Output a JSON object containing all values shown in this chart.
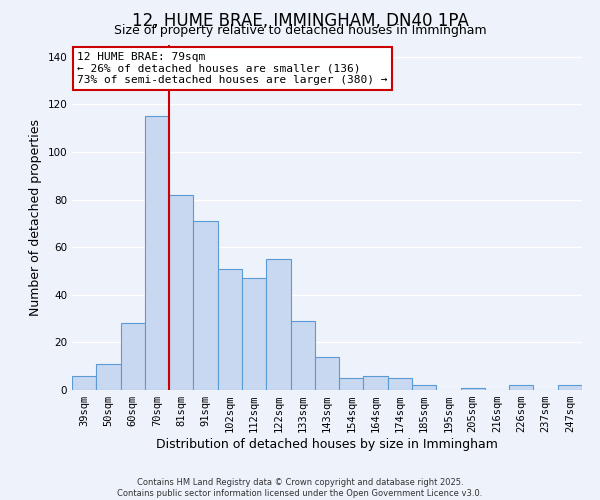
{
  "title": "12, HUME BRAE, IMMINGHAM, DN40 1PA",
  "subtitle": "Size of property relative to detached houses in Immingham",
  "xlabel": "Distribution of detached houses by size in Immingham",
  "ylabel": "Number of detached properties",
  "categories": [
    "39sqm",
    "50sqm",
    "60sqm",
    "70sqm",
    "81sqm",
    "91sqm",
    "102sqm",
    "112sqm",
    "122sqm",
    "133sqm",
    "143sqm",
    "154sqm",
    "164sqm",
    "174sqm",
    "185sqm",
    "195sqm",
    "205sqm",
    "216sqm",
    "226sqm",
    "237sqm",
    "247sqm"
  ],
  "values": [
    6,
    11,
    28,
    115,
    82,
    71,
    51,
    47,
    55,
    29,
    14,
    5,
    6,
    5,
    2,
    0,
    1,
    0,
    2,
    0,
    2
  ],
  "bar_color": "#c8d8f0",
  "bar_edge_color": "#5b9bd5",
  "vline_x_index": 3,
  "vline_color": "#cc0000",
  "annotation_line1": "12 HUME BRAE: 79sqm",
  "annotation_line2": "← 26% of detached houses are smaller (136)",
  "annotation_line3": "73% of semi-detached houses are larger (380) →",
  "annotation_box_color": "#ffffff",
  "annotation_box_edge_color": "#cc0000",
  "ylim": [
    0,
    145
  ],
  "footer_line1": "Contains HM Land Registry data © Crown copyright and database right 2025.",
  "footer_line2": "Contains public sector information licensed under the Open Government Licence v3.0.",
  "background_color": "#eef2fb",
  "grid_color": "#ffffff",
  "title_fontsize": 12,
  "subtitle_fontsize": 9,
  "axis_label_fontsize": 9,
  "tick_fontsize": 7.5
}
